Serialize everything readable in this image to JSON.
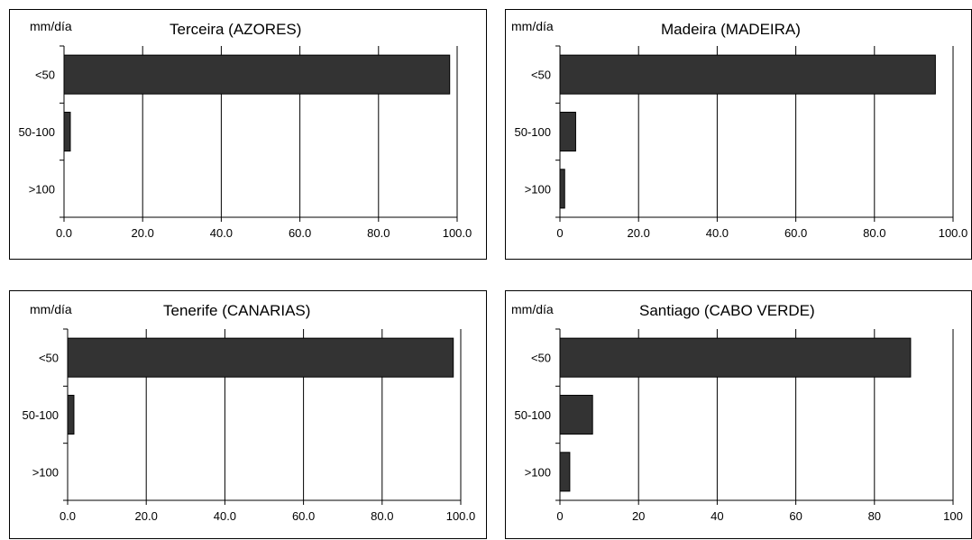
{
  "chart_data": [
    {
      "type": "bar",
      "orientation": "horizontal",
      "title": "Terceira (AZORES)",
      "ylabel": "mm/día",
      "categories": [
        "<50",
        "50-100",
        ">100"
      ],
      "values": [
        98.1,
        1.6,
        0.0
      ],
      "xlim": [
        0,
        100
      ],
      "xticks": [
        "0.0",
        "20.0",
        "40.0",
        "60.0",
        "80.0",
        "100.0"
      ],
      "grid": "vertical"
    },
    {
      "type": "bar",
      "orientation": "horizontal",
      "title": "Madeira (MADEIRA)",
      "ylabel": "mm/día",
      "categories": [
        "<50",
        "50-100",
        ">100"
      ],
      "values": [
        95.5,
        4.0,
        1.2
      ],
      "xlim": [
        0,
        100
      ],
      "xticks": [
        "0",
        "20.0",
        "40.0",
        "60.0",
        "80.0",
        "100.0"
      ],
      "grid": "vertical"
    },
    {
      "type": "bar",
      "orientation": "horizontal",
      "title": "Tenerife (CANARIAS)",
      "ylabel": "mm/día",
      "categories": [
        "<50",
        "50-100",
        ">100"
      ],
      "values": [
        98.1,
        1.6,
        0.0
      ],
      "xlim": [
        0,
        100
      ],
      "xticks": [
        "0.0",
        "20.0",
        "40.0",
        "60.0",
        "80.0",
        "100.0"
      ],
      "grid": "vertical"
    },
    {
      "type": "bar",
      "orientation": "horizontal",
      "title": "Santiago (CABO VERDE)",
      "ylabel": "mm/día",
      "categories": [
        "<50",
        "50-100",
        ">100"
      ],
      "values": [
        89.2,
        8.3,
        2.5
      ],
      "xlim": [
        0,
        100
      ],
      "xticks": [
        "0",
        "20",
        "40",
        "60",
        "80",
        "100"
      ],
      "grid": "vertical"
    }
  ],
  "colors": {
    "bar": "#333333",
    "grid": "#000000",
    "border": "#000000"
  }
}
